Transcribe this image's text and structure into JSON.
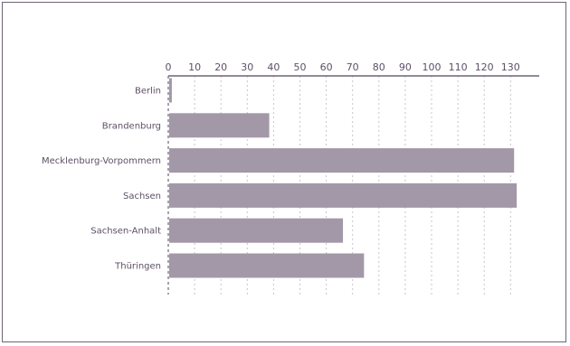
{
  "chart_data": {
    "type": "bar",
    "orientation": "horizontal",
    "categories": [
      "Berlin",
      "Brandenburg",
      "Mecklenburg-Vorpommern",
      "Sachsen",
      "Sachsen-Anhalt",
      "Thüringen"
    ],
    "values": [
      1,
      38,
      131,
      132,
      66,
      74
    ],
    "xlim": [
      0,
      140
    ],
    "xticks": [
      0,
      10,
      20,
      30,
      40,
      50,
      60,
      70,
      80,
      90,
      100,
      110,
      120,
      130
    ],
    "x_axis_position": "top",
    "grid": true,
    "title": "",
    "xlabel": "",
    "ylabel": "",
    "colors": {
      "bar": "#a398a8",
      "axis": "#6e6478",
      "grid": "#c9c3cc",
      "text": "#5e4f66"
    }
  }
}
